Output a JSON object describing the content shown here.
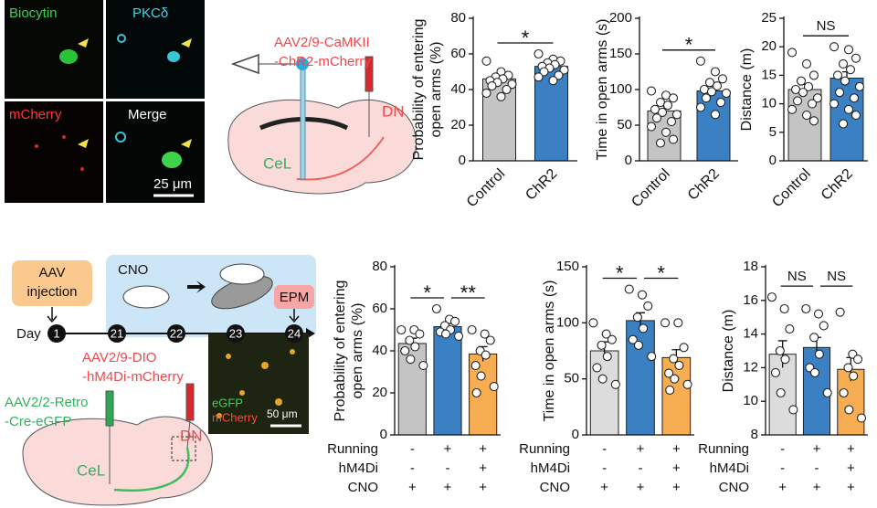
{
  "figure": {
    "micrographs": [
      {
        "label": "Biocytin",
        "color": "#3bd34a"
      },
      {
        "label": "PKCδ",
        "color": "#3fd6e6"
      },
      {
        "label": "mCherry",
        "color": "#ff3b30"
      },
      {
        "label": "Merge",
        "color": "#ffffff"
      }
    ],
    "scale_bar_top": "25 μm",
    "virus_top": [
      "AAV2/9-CaMKII",
      "-ChR2-mCherry"
    ],
    "dn_top": "DN",
    "cel_top": "CeL",
    "aav_box": [
      "AAV",
      "injection"
    ],
    "day_label": "Day",
    "days": [
      "1",
      "21",
      "22",
      "23",
      "24"
    ],
    "cno_label": "CNO",
    "epm_label": "EPM",
    "virus_dio": [
      "AAV2/9-DIO",
      "-hM4Di-mCherry"
    ],
    "virus_retro": [
      "AAV2/2-Retro",
      "-Cre-eGFP"
    ],
    "dn_bottom": "DN",
    "cel_bottom": "CeL",
    "inset_labels": [
      "eGFP",
      "mCherry"
    ],
    "scale_bar_bottom": "50 μm"
  },
  "chart_data": [
    {
      "type": "bar",
      "ylabel": [
        "Probability of entering",
        "open arms (%)"
      ],
      "categories": [
        "Control",
        "ChR2"
      ],
      "values": [
        46,
        53
      ],
      "errors": [
        2,
        1.5
      ],
      "colors": [
        "#c4c4c4",
        "#3a80c3"
      ],
      "points": [
        [
          56,
          50,
          48,
          47,
          46,
          45,
          44,
          43,
          42,
          40,
          38,
          36
        ],
        [
          60,
          57,
          56,
          55,
          54,
          53,
          52,
          51,
          50,
          48,
          47,
          45
        ]
      ],
      "ylim": [
        0,
        80
      ],
      "yticks": [
        0,
        20,
        40,
        60,
        80
      ],
      "significance": [
        "*"
      ]
    },
    {
      "type": "bar",
      "ylabel": [
        "Time in open arms (s)"
      ],
      "categories": [
        "Control",
        "ChR2"
      ],
      "values": [
        70,
        98
      ],
      "errors": [
        7,
        7
      ],
      "colors": [
        "#c4c4c4",
        "#3a80c3"
      ],
      "points": [
        [
          98,
          92,
          88,
          82,
          78,
          72,
          68,
          65,
          60,
          55,
          48,
          40,
          30,
          25
        ],
        [
          140,
          125,
          115,
          110,
          105,
          100,
          97,
          95,
          88,
          82,
          75,
          65
        ]
      ],
      "ylim": [
        0,
        200
      ],
      "yticks": [
        0,
        50,
        100,
        150,
        200
      ],
      "significance": [
        "*"
      ]
    },
    {
      "type": "bar",
      "ylabel": [
        "Distance (m)"
      ],
      "categories": [
        "Control",
        "ChR2"
      ],
      "values": [
        12.5,
        14.5
      ],
      "errors": [
        0.9,
        1.1
      ],
      "colors": [
        "#c4c4c4",
        "#3a80c3"
      ],
      "points": [
        [
          19,
          17,
          15,
          14,
          13,
          12.5,
          12,
          11,
          10.5,
          10,
          9,
          8,
          7
        ],
        [
          20,
          19.5,
          18,
          17,
          16,
          15,
          14,
          13,
          12,
          11,
          10,
          9,
          8,
          6.5
        ]
      ],
      "ylim": [
        0,
        25
      ],
      "yticks": [
        0,
        5,
        10,
        15,
        20,
        25
      ],
      "significance": [
        "NS"
      ]
    },
    {
      "type": "bar",
      "ylabel": [
        "Probability of entering",
        "open arms (%)"
      ],
      "categories": [
        null,
        null,
        null
      ],
      "values": [
        43.5,
        51.5,
        38.5
      ],
      "errors": [
        2.5,
        1.5,
        3.5
      ],
      "colors": [
        "#c4c4c4",
        "#3a80c3",
        "#f7ad52"
      ],
      "points": [
        [
          50,
          50,
          48,
          45,
          42,
          40,
          36,
          33
        ],
        [
          60,
          55,
          54,
          52,
          50,
          49,
          48,
          47
        ],
        [
          50,
          48,
          45,
          40,
          38,
          33,
          28,
          23,
          20
        ]
      ],
      "ylim": [
        0,
        80
      ],
      "yticks": [
        0,
        20,
        40,
        60,
        80
      ],
      "significance": [
        "*",
        "**"
      ],
      "conditions": [
        {
          "label": "Running",
          "values": [
            "-",
            "+",
            "+"
          ]
        },
        {
          "label": "hM4Di",
          "values": [
            "-",
            "-",
            "+"
          ]
        },
        {
          "label": "CNO",
          "values": [
            "+",
            "+",
            "+"
          ]
        }
      ]
    },
    {
      "type": "bar",
      "ylabel": [
        "Time in open arms (s)"
      ],
      "categories": [
        null,
        null,
        null
      ],
      "values": [
        75,
        102,
        69
      ],
      "errors": [
        8,
        7,
        7
      ],
      "colors": [
        "#dcdcdc",
        "#3a80c3",
        "#f7ad52"
      ],
      "points": [
        [
          100,
          90,
          85,
          80,
          70,
          60,
          50,
          45
        ],
        [
          130,
          125,
          115,
          105,
          95,
          85,
          80,
          70
        ],
        [
          100,
          100,
          78,
          68,
          62,
          55,
          50,
          45,
          40
        ]
      ],
      "ylim": [
        0,
        150
      ],
      "yticks": [
        0,
        50,
        100,
        150
      ],
      "significance": [
        "*",
        "*"
      ],
      "conditions": [
        {
          "label": "Running",
          "values": [
            "-",
            "+",
            "+"
          ]
        },
        {
          "label": "hM4Di",
          "values": [
            "-",
            "-",
            "+"
          ]
        },
        {
          "label": "CNO",
          "values": [
            "+",
            "+",
            "+"
          ]
        }
      ]
    },
    {
      "type": "bar",
      "ylabel": [
        "Distance (m)"
      ],
      "categories": [
        null,
        null,
        null
      ],
      "values": [
        12.8,
        13.2,
        11.9
      ],
      "errors": [
        0.8,
        0.6,
        0.7
      ],
      "colors": [
        "#dcdcdc",
        "#3a80c3",
        "#f7ad52"
      ],
      "points": [
        [
          16.2,
          15.5,
          14.3,
          13,
          12.5,
          11.7,
          10.5,
          9.5
        ],
        [
          15.5,
          15.2,
          14.5,
          13.8,
          12.8,
          12,
          11.7,
          10.5
        ],
        [
          15.3,
          12.8,
          12.5,
          12,
          11.5,
          10.5,
          9.5,
          9
        ]
      ],
      "ylim": [
        8,
        18
      ],
      "yticks": [
        8,
        10,
        12,
        14,
        16,
        18
      ],
      "significance": [
        "NS",
        "NS"
      ],
      "conditions": [
        {
          "label": "Running",
          "values": [
            "-",
            "+",
            "+"
          ]
        },
        {
          "label": "hM4Di",
          "values": [
            "-",
            "-",
            "+"
          ]
        },
        {
          "label": "CNO",
          "values": [
            "+",
            "+",
            "+"
          ]
        }
      ]
    }
  ]
}
